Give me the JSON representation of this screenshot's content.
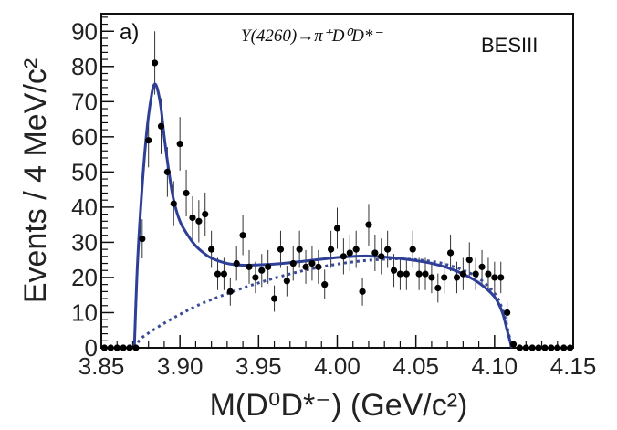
{
  "chart_data": {
    "type": "scatter",
    "panel_label": "a)",
    "process_text": "Y(4260)→π⁺D⁰D*⁻",
    "experiment_label": "BESIII",
    "xlabel": "M(D⁰D*⁻) (GeV/c²)",
    "ylabel": "Events / 4 MeV/c²",
    "xlim": [
      3.85,
      4.15
    ],
    "ylim": [
      0,
      95
    ],
    "x_ticks": [
      "3.85",
      "3.90",
      "3.95",
      "4.00",
      "4.05",
      "4.10",
      "4.15"
    ],
    "y_ticks": [
      "0",
      "10",
      "20",
      "30",
      "40",
      "50",
      "60",
      "70",
      "80",
      "90"
    ],
    "series": [
      {
        "kind": "data-points-with-error-bars",
        "x": [
          3.852,
          3.856,
          3.86,
          3.864,
          3.868,
          3.872,
          3.876,
          3.88,
          3.884,
          3.888,
          3.892,
          3.896,
          3.9,
          3.904,
          3.908,
          3.912,
          3.916,
          3.92,
          3.924,
          3.928,
          3.932,
          3.936,
          3.94,
          3.944,
          3.948,
          3.952,
          3.956,
          3.96,
          3.964,
          3.968,
          3.972,
          3.976,
          3.98,
          3.984,
          3.988,
          3.992,
          3.996,
          4.0,
          4.004,
          4.008,
          4.012,
          4.016,
          4.02,
          4.024,
          4.028,
          4.032,
          4.036,
          4.04,
          4.044,
          4.048,
          4.052,
          4.056,
          4.06,
          4.064,
          4.068,
          4.072,
          4.076,
          4.08,
          4.084,
          4.088,
          4.092,
          4.096,
          4.1,
          4.104,
          4.108,
          4.112,
          4.116,
          4.12,
          4.124,
          4.128,
          4.132,
          4.136,
          4.14,
          4.144,
          4.148
        ],
        "y": [
          0,
          0,
          0,
          0,
          0,
          0,
          31,
          59,
          81,
          63,
          50,
          41,
          58,
          44,
          37,
          36,
          38,
          28,
          21,
          21,
          16,
          24,
          32,
          23,
          20,
          22,
          23,
          14,
          28,
          19,
          24,
          28,
          23,
          24,
          23,
          18,
          28,
          34,
          26,
          27,
          28,
          16,
          35,
          27,
          26,
          28,
          22,
          21,
          21,
          28,
          21,
          21,
          20,
          17,
          20,
          27,
          20,
          21,
          25,
          21,
          23,
          21,
          20,
          20,
          10,
          1,
          0,
          0,
          0,
          0,
          0,
          0,
          0,
          0,
          0
        ]
      },
      {
        "kind": "total-fit-solid",
        "x": [
          3.871,
          3.873,
          3.876,
          3.879,
          3.882,
          3.884,
          3.886,
          3.888,
          3.89,
          3.893,
          3.896,
          3.9,
          3.905,
          3.91,
          3.915,
          3.92,
          3.93,
          3.94,
          3.95,
          3.96,
          3.97,
          3.98,
          3.99,
          4.0,
          4.01,
          4.02,
          4.03,
          4.04,
          4.05,
          4.06,
          4.07,
          4.08,
          4.09,
          4.1,
          4.105,
          4.108,
          4.111
        ],
        "y": [
          0,
          24,
          46,
          62,
          72,
          75,
          73,
          68,
          60,
          50,
          42,
          36,
          32,
          29,
          27,
          25.5,
          24,
          23.5,
          23.6,
          23.8,
          24.2,
          24.7,
          25.2,
          25.7,
          26,
          26.1,
          25.8,
          25.4,
          24.8,
          24,
          22.8,
          21,
          18.5,
          14.5,
          10,
          5,
          0
        ]
      },
      {
        "kind": "background-fit-dashed",
        "x": [
          3.871,
          3.875,
          3.88,
          3.89,
          3.9,
          3.91,
          3.92,
          3.94,
          3.96,
          3.98,
          4.0,
          4.02,
          4.04,
          4.06,
          4.07,
          4.08,
          4.09,
          4.1,
          4.105,
          4.108,
          4.111
        ],
        "y": [
          0,
          2.5,
          4.2,
          7,
          9.5,
          11.8,
          13.7,
          17,
          19.8,
          22.1,
          23.8,
          24.9,
          25.3,
          24.6,
          23.6,
          22.1,
          19.8,
          15.5,
          11,
          6,
          0
        ]
      }
    ]
  }
}
